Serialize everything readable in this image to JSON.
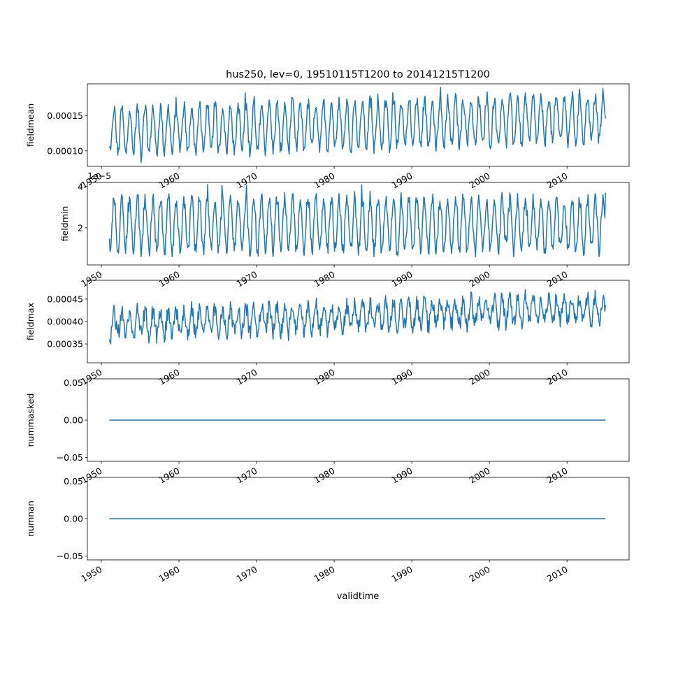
{
  "figure_title": "hus250, lev=0, 19510115T1200 to 20141215T1200",
  "xlabel": "validtime",
  "x_ticks": [
    "1950",
    "1960",
    "1970",
    "1980",
    "1990",
    "2000",
    "2010"
  ],
  "chart_data": [
    {
      "type": "line",
      "ylabel": "fieldmean",
      "xlim": [
        1948.2,
        2018.0
      ],
      "ylim": [
        7.8e-05,
        0.000195
      ],
      "yticks": [
        0.0001,
        0.00015
      ],
      "ytick_labels": [
        "0.00010",
        "0.00015"
      ],
      "offset_text": "",
      "x_start": 1951.04,
      "x_end": 2014.96,
      "n_points": 768,
      "seasonal_cycle": {
        "low": 9.5e-05,
        "high": 0.00016,
        "peak_months": [
          7,
          8
        ]
      },
      "trend_per_decade": 3e-06,
      "range_observed": [
        8.2e-05,
        0.00019
      ],
      "end_value": 0.000146,
      "series": [
        {
          "color": "#1f77b4"
        }
      ]
    },
    {
      "type": "line",
      "ylabel": "fieldmin",
      "xlim": [
        1948.2,
        2018.0
      ],
      "ylim": [
        2e-06,
        4.2e-05
      ],
      "yticks": [
        2e-05,
        4e-05
      ],
      "ytick_labels": [
        "2",
        "4"
      ],
      "offset_text": "1e−5",
      "x_start": 1951.04,
      "x_end": 2014.96,
      "n_points": 768,
      "seasonal_cycle": {
        "low": 9e-06,
        "high": 3.4e-05,
        "peak_months": [
          7,
          8
        ]
      },
      "trend_per_decade": 0.0,
      "range_observed": [
        6e-06,
        4.1e-05
      ],
      "end_value": 3.7e-05,
      "series": [
        {
          "color": "#1f77b4"
        }
      ]
    },
    {
      "type": "line",
      "ylabel": "fieldmax",
      "xlim": [
        1948.2,
        2018.0
      ],
      "ylim": [
        0.000308,
        0.000492
      ],
      "yticks": [
        0.00035,
        0.0004,
        0.00045
      ],
      "ytick_labels": [
        "0.00035",
        "0.00040",
        "0.00045"
      ],
      "offset_text": "",
      "x_start": 1951.04,
      "x_end": 2014.96,
      "n_points": 768,
      "seasonal_cycle": {
        "low": 0.000365,
        "high": 0.00042,
        "peak_months": [
          7,
          8
        ]
      },
      "trend_per_decade": 6e-06,
      "range_observed": [
        0.000313,
        0.000488
      ],
      "end_value": 0.000437,
      "series": [
        {
          "color": "#1f77b4"
        }
      ]
    },
    {
      "type": "line",
      "ylabel": "nummasked",
      "xlim": [
        1948.2,
        2018.0
      ],
      "ylim": [
        -0.055,
        0.055
      ],
      "yticks": [
        -0.05,
        0.0,
        0.05
      ],
      "ytick_labels": [
        "−0.05",
        "0.00",
        "0.05"
      ],
      "offset_text": "",
      "x_start": 1951.04,
      "x_end": 2014.96,
      "constant_value": 0.0,
      "series": [
        {
          "color": "#1f77b4"
        }
      ]
    },
    {
      "type": "line",
      "ylabel": "numnan",
      "xlim": [
        1948.2,
        2018.0
      ],
      "ylim": [
        -0.055,
        0.055
      ],
      "yticks": [
        -0.05,
        0.0,
        0.05
      ],
      "ytick_labels": [
        "−0.05",
        "0.00",
        "0.05"
      ],
      "offset_text": "",
      "x_start": 1951.04,
      "x_end": 2014.96,
      "constant_value": 0.0,
      "series": [
        {
          "color": "#1f77b4"
        }
      ]
    }
  ]
}
